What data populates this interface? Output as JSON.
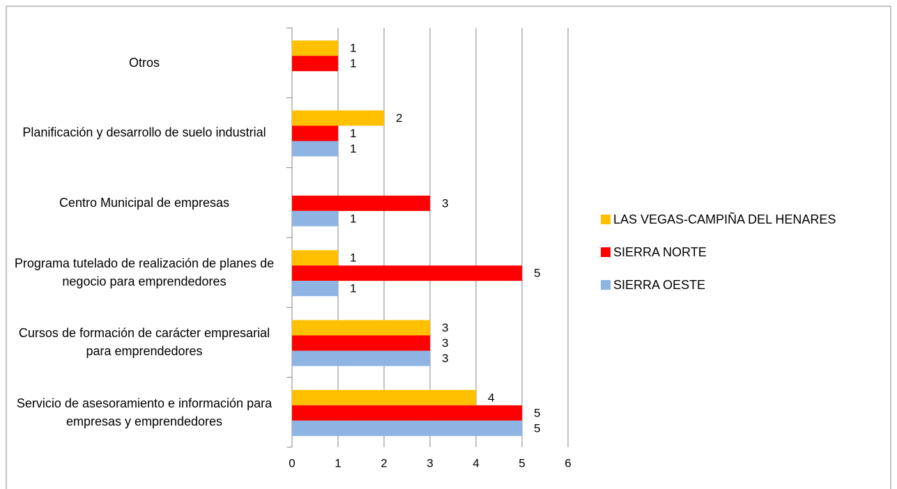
{
  "chart_data": {
    "type": "bar",
    "orientation": "horizontal",
    "categories": [
      "Otros",
      "Planificación y desarrollo de suelo industrial",
      "Centro Municipal de empresas",
      "Programa tutelado de realización de planes de negocio para emprendedores",
      "Cursos de formación de carácter empresarial para emprendedores",
      "Servicio de asesoramiento e información para empresas y emprendedores"
    ],
    "series": [
      {
        "name": "LAS VEGAS-CAMPIÑA DEL HENARES",
        "color": "#ffc000",
        "values": [
          1,
          2,
          null,
          1,
          3,
          4
        ]
      },
      {
        "name": "SIERRA NORTE",
        "color": "#ff0000",
        "values": [
          1,
          1,
          3,
          5,
          3,
          5
        ]
      },
      {
        "name": "SIERRA OESTE",
        "color": "#8db4e2",
        "values": [
          null,
          1,
          1,
          1,
          3,
          5
        ]
      }
    ],
    "xlim": [
      0,
      6
    ],
    "xticks": [
      0,
      1,
      2,
      3,
      4,
      5,
      6
    ],
    "grid": true,
    "legend": "right"
  }
}
